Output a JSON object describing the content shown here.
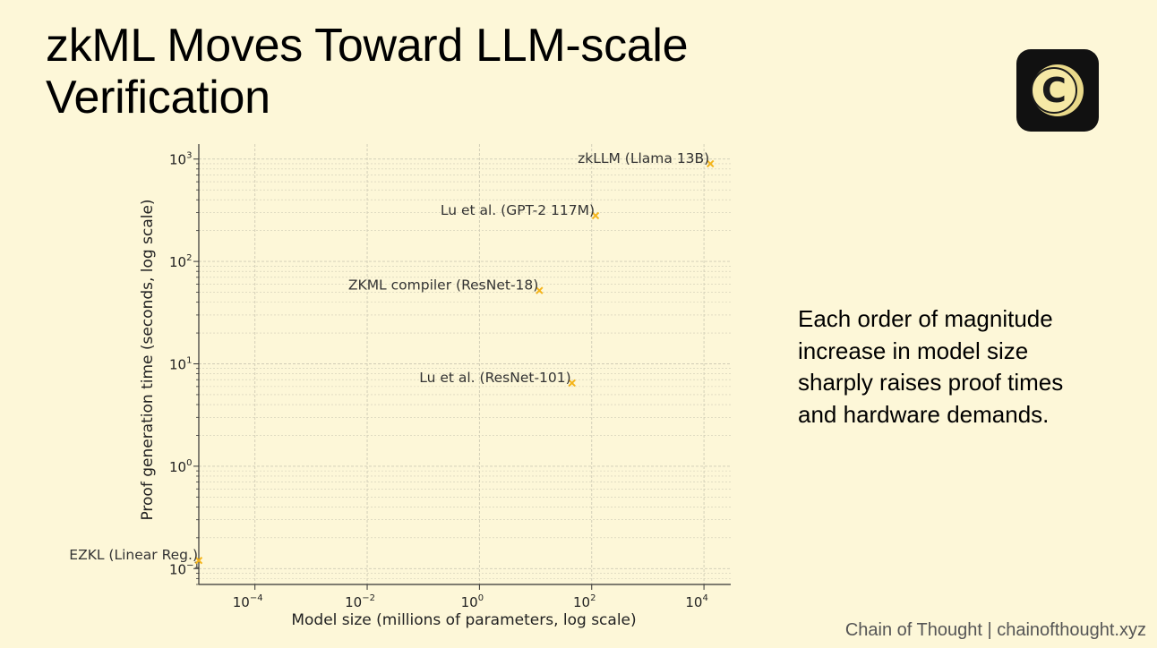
{
  "slide": {
    "title_line1": "zkML Moves Toward LLM-scale",
    "title_line2": "Verification",
    "note_lines": [
      "Each order of magnitude",
      "increase in model size",
      "sharply raises proof times",
      "and hardware demands."
    ],
    "footer": "Chain of Thought | chainofthought.xyz",
    "logo_letter": "C",
    "background_color": "#fdf7d8"
  },
  "chart_data": {
    "type": "scatter",
    "title": "",
    "xlabel": "Model size (millions of parameters, log scale)",
    "ylabel": "Proof generation time (seconds, log scale)",
    "xscale": "log",
    "yscale": "log",
    "xlim": [
      1e-05,
      30000
    ],
    "ylim": [
      0.07,
      1400
    ],
    "grid": true,
    "marker": "x",
    "marker_color": "#f4b41a",
    "xticks": [
      {
        "base": "10",
        "exp": "−4",
        "value": 0.0001
      },
      {
        "base": "10",
        "exp": "−2",
        "value": 0.01
      },
      {
        "base": "10",
        "exp": "0",
        "value": 1
      },
      {
        "base": "10",
        "exp": "2",
        "value": 100
      },
      {
        "base": "10",
        "exp": "4",
        "value": 10000
      }
    ],
    "yticks": [
      {
        "base": "10",
        "exp": "−1",
        "value": 0.1
      },
      {
        "base": "10",
        "exp": "0",
        "value": 1
      },
      {
        "base": "10",
        "exp": "1",
        "value": 10
      },
      {
        "base": "10",
        "exp": "2",
        "value": 100
      },
      {
        "base": "10",
        "exp": "3",
        "value": 1000
      }
    ],
    "points": [
      {
        "label": "EZKL (Linear Reg.)",
        "x": 1e-05,
        "y": 0.12
      },
      {
        "label": "ZKML compiler (ResNet-18)",
        "x": 11.7,
        "y": 52
      },
      {
        "label": "Lu et al. (ResNet-101)",
        "x": 44.5,
        "y": 6.5
      },
      {
        "label": "Lu et al. (GPT-2 117M)",
        "x": 117,
        "y": 280
      },
      {
        "label": "zkLLM (Llama 13B)",
        "x": 13000,
        "y": 900
      }
    ]
  }
}
